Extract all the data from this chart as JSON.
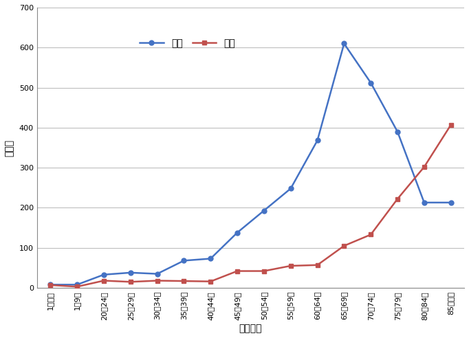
{
  "xlabel": "年齢階級",
  "ylabel": "死亡数",
  "categories": [
    "1歳未満",
    "1～9歳",
    "20～24歳",
    "25～29歳",
    "30～34歳",
    "35～39歳",
    "40～44歳",
    "45～49歳",
    "50～54歳",
    "55～59歳",
    "60～64歳",
    "65～69歳",
    "70～74歳",
    "75～79歳",
    "80～84歳",
    "85歳以上"
  ],
  "male_values": [
    8,
    8,
    33,
    38,
    35,
    68,
    73,
    138,
    193,
    248,
    368,
    610,
    512,
    390,
    213,
    213
  ],
  "female_values": [
    7,
    3,
    18,
    15,
    18,
    17,
    16,
    42,
    42,
    55,
    57,
    105,
    133,
    222,
    302,
    407
  ],
  "male_color": "#4472C4",
  "female_color": "#C0504D",
  "male_label": "男性",
  "female_label": "女性",
  "ylim": [
    0,
    700
  ],
  "yticks": [
    0,
    100,
    200,
    300,
    400,
    500,
    600,
    700
  ],
  "bg_color": "#FFFFFF",
  "grid_color": "#BEBEBE",
  "linewidth": 1.8,
  "markersize": 5
}
